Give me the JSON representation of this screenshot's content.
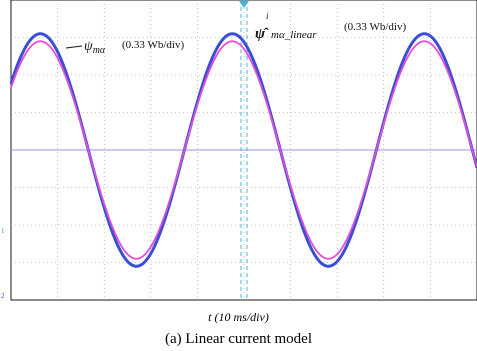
{
  "chart_data": {
    "type": "line",
    "x_unit": "10 ms/div",
    "y_unit": "0.33 Wb/div",
    "x_divisions": 10,
    "y_divisions": 8,
    "x": [
      0,
      0.1,
      0.2,
      0.3,
      0.4,
      0.5,
      0.6,
      0.7,
      0.8,
      0.9,
      1.0,
      1.1,
      1.2,
      1.3,
      1.4,
      1.5,
      1.6,
      1.7,
      1.8,
      1.9,
      2.0,
      2.1,
      2.2,
      2.3,
      2.4,
      2.5,
      2.6,
      2.7,
      2.8,
      2.9,
      3.0,
      3.1,
      3.2,
      3.3,
      3.4,
      3.5,
      3.6,
      3.7,
      3.8,
      3.9,
      4.0,
      4.1,
      4.2,
      4.3,
      4.4,
      4.5,
      4.6,
      4.7,
      4.8,
      4.9,
      5.0,
      5.1,
      5.2,
      5.3,
      5.4,
      5.5,
      5.6,
      5.7,
      5.8,
      5.9,
      6.0,
      6.1,
      6.2,
      6.3,
      6.4,
      6.5,
      6.6,
      6.7,
      6.8,
      6.9,
      7.0,
      7.1,
      7.2,
      7.3,
      7.4,
      7.5,
      7.6,
      7.7,
      7.8,
      7.9,
      8.0,
      8.1,
      8.2,
      8.3,
      8.4,
      8.5,
      8.6,
      8.7,
      8.8,
      8.9,
      9.0,
      9.1,
      9.2,
      9.3,
      9.4,
      9.5,
      9.6,
      9.7,
      9.8,
      9.9,
      10.0
    ],
    "series": [
      {
        "name": "ψmα",
        "color": "#3b4fd6",
        "amplitude_div": 3.1,
        "period_div": 4.12,
        "phase_div": -0.4
      },
      {
        "name": "ψ̂mα_linear",
        "color": "#e24ed8",
        "amplitude_div": 2.9,
        "period_div": 4.12,
        "phase_div": -0.4
      }
    ],
    "annotations": {
      "psi_label_prefix": "ψ",
      "psi_label_sub": "mα",
      "psi_label_scale": "(0.33 Wb/div)",
      "psi_hat_prefix": "ψ̂",
      "psi_hat_sup": "i",
      "psi_hat_sub": "mα_linear",
      "psi_hat_scale": "(0.33 Wb/div)"
    },
    "xlabel": "t (10 ms/div)",
    "grid": "dotted",
    "colors": {
      "grid": "#9a9a9a",
      "axis": "#1a1a1a",
      "marker": "#49b6d8",
      "zero": "#a58de8"
    }
  },
  "caption": "(a) Linear current model"
}
